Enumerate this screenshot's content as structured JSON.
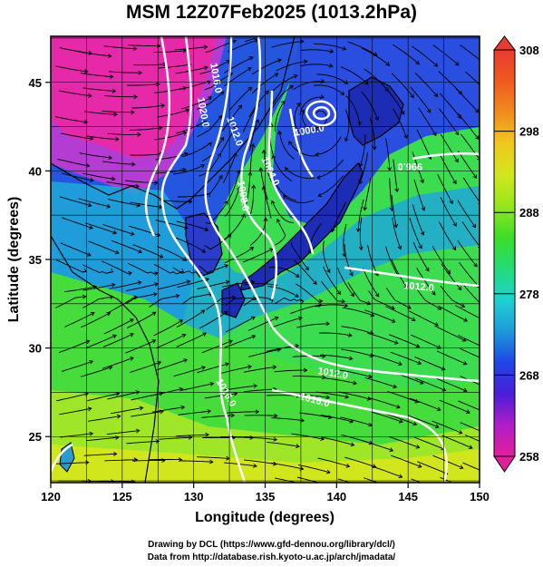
{
  "title": "MSM 12Z07Feb2025 (1013.2hPa)",
  "xlabel": "Longitude (degrees)",
  "ylabel": "Latitude  (degrees)",
  "xticks": [
    120,
    125,
    130,
    135,
    140,
    145,
    150
  ],
  "yticks": [
    25,
    30,
    35,
    40,
    45
  ],
  "xlim": [
    120,
    150
  ],
  "ylim": [
    22.4,
    47.6
  ],
  "colorbar": {
    "ticks": [
      258,
      268,
      278,
      288,
      298,
      308
    ],
    "range": [
      258,
      308
    ],
    "colors": [
      "#e0209a",
      "#b01ec8",
      "#4a1ed8",
      "#1e46e6",
      "#1e9ad8",
      "#1ed2d2",
      "#22dc78",
      "#3cdc28",
      "#96e61e",
      "#d2e61e",
      "#f0c81e",
      "#f08c1e",
      "#f05a1e",
      "#e63c32"
    ]
  },
  "isobar_labels": [
    "1016.0",
    "1012.0",
    "1008.0",
    "1004.0",
    "1000.0",
    "996.0",
    "1012.0",
    "1016.0",
    "1020.0",
    "1016.0",
    "1012.0"
  ],
  "credits": {
    "line1": "Drawing by DCL (https://www.gfd-dennou.org/library/dcl/)",
    "line2": "Data from http://database.rish.kyoto-u.ac.jp/arch/jmadata/"
  }
}
